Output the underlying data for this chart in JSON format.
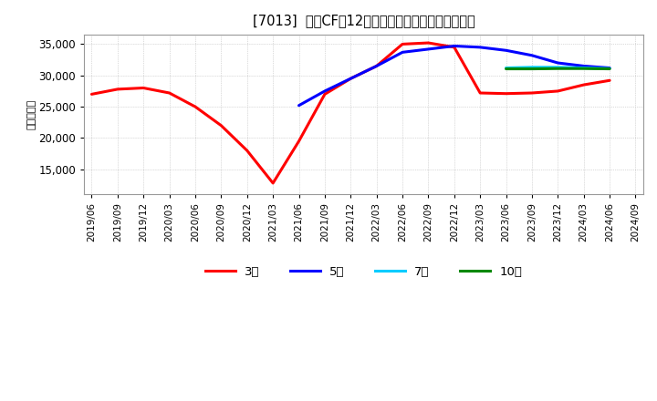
{
  "title": "[7013]  投賄CFだ12か月移動合計の標準偏差の推移",
  "ylabel": "（百万円）",
  "ylim": [
    11000,
    36500
  ],
  "yticks": [
    15000,
    20000,
    25000,
    30000,
    35000
  ],
  "background_color": "#ffffff",
  "grid_color": "#999999",
  "series": {
    "3年": {
      "color": "#ff0000",
      "dates": [
        "2019/06",
        "2019/09",
        "2019/12",
        "2020/03",
        "2020/06",
        "2020/09",
        "2020/12",
        "2021/03",
        "2021/06",
        "2021/09",
        "2021/12",
        "2022/03",
        "2022/06",
        "2022/09",
        "2022/12",
        "2023/03",
        "2023/06",
        "2023/09",
        "2023/12",
        "2024/03",
        "2024/06"
      ],
      "values": [
        27000,
        27800,
        28000,
        27200,
        25000,
        22000,
        18000,
        12800,
        19500,
        27000,
        29500,
        31500,
        35000,
        35200,
        34500,
        27200,
        27100,
        27200,
        27500,
        28500,
        29200
      ]
    },
    "5年": {
      "color": "#0000ff",
      "dates": [
        "2021/06",
        "2021/09",
        "2021/12",
        "2022/03",
        "2022/06",
        "2022/09",
        "2022/12",
        "2023/03",
        "2023/06",
        "2023/09",
        "2023/12",
        "2024/03",
        "2024/06"
      ],
      "values": [
        25200,
        27500,
        29500,
        31500,
        33700,
        34200,
        34700,
        34500,
        34000,
        33200,
        32000,
        31500,
        31200
      ]
    },
    "7年": {
      "color": "#00ccff",
      "dates": [
        "2023/06",
        "2023/09",
        "2023/12",
        "2024/03",
        "2024/06"
      ],
      "values": [
        31200,
        31300,
        31300,
        31200,
        31100
      ]
    },
    "10年": {
      "color": "#008800",
      "dates": [
        "2023/06",
        "2023/09",
        "2023/12",
        "2024/03",
        "2024/06"
      ],
      "values": [
        31050,
        31050,
        31100,
        31100,
        31050
      ]
    }
  },
  "xtick_labels": [
    "2019/06",
    "2019/09",
    "2019/12",
    "2020/03",
    "2020/06",
    "2020/09",
    "2020/12",
    "2021/03",
    "2021/06",
    "2021/09",
    "2021/12",
    "2022/03",
    "2022/06",
    "2022/09",
    "2022/12",
    "2023/03",
    "2023/06",
    "2023/09",
    "2023/12",
    "2024/03",
    "2024/06",
    "2024/09"
  ],
  "legend_labels": [
    "3年",
    "5年",
    "7年",
    "10年"
  ],
  "legend_colors": [
    "#ff0000",
    "#0000ff",
    "#00ccff",
    "#008800"
  ]
}
